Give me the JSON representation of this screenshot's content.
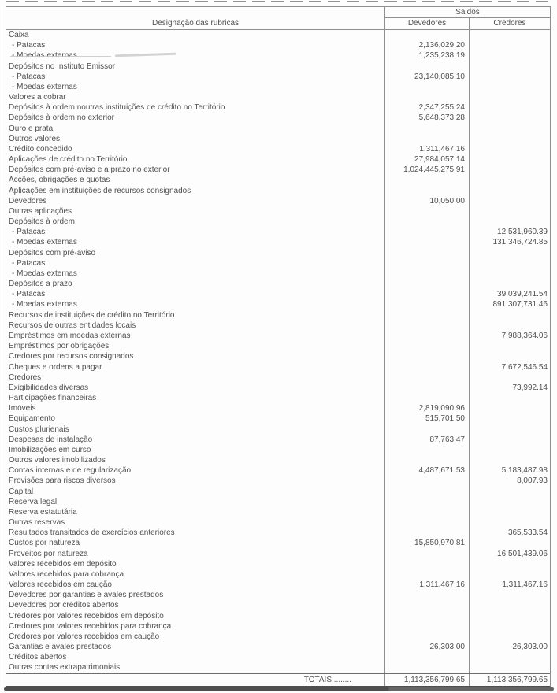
{
  "colors": {
    "ink": "#4f4f4f",
    "line": "#8f8f8f"
  },
  "table": {
    "header": {
      "designacao": "Designação das rubricas",
      "saldos": "Saldos",
      "devedores": "Devedores",
      "credores": "Credores"
    },
    "rows": [
      {
        "label": "Caixa",
        "dev": "",
        "cred": ""
      },
      {
        "label": "- Patacas",
        "sub": true,
        "dev": "2,136,029.20",
        "cred": ""
      },
      {
        "label": "- Moedas externas",
        "sub": true,
        "smudge": true,
        "dev": "1,235,238.19",
        "cred": ""
      },
      {
        "label": "Depósitos no Instituto Emissor",
        "dev": "",
        "cred": ""
      },
      {
        "label": "- Patacas",
        "sub": true,
        "dev": "23,140,085.10",
        "cred": ""
      },
      {
        "label": "- Moedas externas",
        "sub": true,
        "dev": "",
        "cred": ""
      },
      {
        "label": "Valores a cobrar",
        "dev": "",
        "cred": ""
      },
      {
        "label": "Depósitos à ordem noutras instituições de crédito no Território",
        "dev": "2,347,255.24",
        "cred": ""
      },
      {
        "label": "Depósitos à ordem no exterior",
        "dev": "5,648,373.28",
        "cred": ""
      },
      {
        "label": "Ouro e prata",
        "dev": "",
        "cred": ""
      },
      {
        "label": "Outros valores",
        "dev": "",
        "cred": ""
      },
      {
        "label": "Crédito concedido",
        "dev": "1,311,467.16",
        "cred": ""
      },
      {
        "label": "Aplicações de crédito no Território",
        "dev": "27,984,057.14",
        "cred": ""
      },
      {
        "label": "Depósitos com pré-aviso e a prazo no exterior",
        "dev": "1,024,445,275.91",
        "cred": ""
      },
      {
        "label": "Acções, obrigações e quotas",
        "dev": "",
        "cred": ""
      },
      {
        "label": "Aplicações em instituições de recursos consignados",
        "dev": "",
        "cred": ""
      },
      {
        "label": "Devedores",
        "dev": "10,050.00",
        "cred": ""
      },
      {
        "label": "Outras aplicações",
        "dev": "",
        "cred": ""
      },
      {
        "label": "Depósitos à ordem",
        "dev": "",
        "cred": ""
      },
      {
        "label": "- Patacas",
        "sub": true,
        "dev": "",
        "cred": "12,531,960.39"
      },
      {
        "label": "- Moedas externas",
        "sub": true,
        "dev": "",
        "cred": "131,346,724.85"
      },
      {
        "label": "Depósitos com pré-aviso",
        "dev": "",
        "cred": ""
      },
      {
        "label": "- Patacas",
        "sub": true,
        "dev": "",
        "cred": ""
      },
      {
        "label": "- Moedas externas",
        "sub": true,
        "dev": "",
        "cred": ""
      },
      {
        "label": "Depósitos a prazo",
        "dev": "",
        "cred": ""
      },
      {
        "label": "- Patacas",
        "sub": true,
        "dev": "",
        "cred": "39,039,241.54"
      },
      {
        "label": "- Moedas externas",
        "sub": true,
        "dev": "",
        "cred": "891,307,731.46"
      },
      {
        "label": "Recursos de instituições de crédito no Território",
        "dev": "",
        "cred": ""
      },
      {
        "label": "Recursos de outras entidades locais",
        "dev": "",
        "cred": ""
      },
      {
        "label": "Empréstimos em moedas externas",
        "dev": "",
        "cred": "7,988,364.06"
      },
      {
        "label": "Empréstimos por obrigações",
        "dev": "",
        "cred": ""
      },
      {
        "label": "Credores por recursos consignados",
        "dev": "",
        "cred": ""
      },
      {
        "label": "Cheques e ordens a pagar",
        "dev": "",
        "cred": "7,672,546.54"
      },
      {
        "label": "Credores",
        "dev": "",
        "cred": ""
      },
      {
        "label": "Exigibilidades diversas",
        "dev": "",
        "cred": "73,992.14"
      },
      {
        "label": "Participações financeiras",
        "dev": "",
        "cred": ""
      },
      {
        "label": "Imóveis",
        "dev": "2,819,090.96",
        "cred": ""
      },
      {
        "label": "Equipamento",
        "dev": "515,701.50",
        "cred": ""
      },
      {
        "label": "Custos plurienais",
        "dev": "",
        "cred": ""
      },
      {
        "label": "Despesas de instalação",
        "dev": "87,763.47",
        "cred": ""
      },
      {
        "label": "Imobilizações em curso",
        "dev": "",
        "cred": ""
      },
      {
        "label": "Outros valores imobilizados",
        "dev": "",
        "cred": ""
      },
      {
        "label": "Contas internas e de regularização",
        "dev": "4,487,671.53",
        "cred": "5,183,487.98"
      },
      {
        "label": "Provisões para riscos diversos",
        "dev": "",
        "cred": "8,007.93"
      },
      {
        "label": "Capital",
        "dev": "",
        "cred": ""
      },
      {
        "label": "Reserva legal",
        "dev": "",
        "cred": ""
      },
      {
        "label": "Reserva estatutária",
        "dev": "",
        "cred": ""
      },
      {
        "label": "Outras reservas",
        "dev": "",
        "cred": ""
      },
      {
        "label": "Resultados transitados de exercícios anteriores",
        "dev": "",
        "cred": "365,533.54"
      },
      {
        "label": "Custos por natureza",
        "dev": "15,850,970.81",
        "cred": ""
      },
      {
        "label": "Proveitos por natureza",
        "dev": "",
        "cred": "16,501,439.06"
      },
      {
        "label": "Valores recebidos em depósito",
        "dev": "",
        "cred": ""
      },
      {
        "label": "Valores recebidos para cobrança",
        "dev": "",
        "cred": ""
      },
      {
        "label": "Valores recebidos em caução",
        "dev": "1,311,467.16",
        "cred": "1,311,467.16"
      },
      {
        "label": "Devedores por garantias e avales prestados",
        "dev": "",
        "cred": ""
      },
      {
        "label": "Devedores por créditos abertos",
        "dev": "",
        "cred": ""
      },
      {
        "label": "Credores por valores recebidos em depósito",
        "dev": "",
        "cred": ""
      },
      {
        "label": "Credores por valores recebidos para cobrança",
        "dev": "",
        "cred": ""
      },
      {
        "label": "Credores por valores recebidos em caução",
        "dev": "",
        "cred": ""
      },
      {
        "label": "Garantias e avales prestados",
        "dev": "26,303.00",
        "cred": "26,303.00"
      },
      {
        "label": "Créditos abertos",
        "dev": "",
        "cred": ""
      },
      {
        "label": "Outras contas extrapatrimoniais",
        "dev": "",
        "cred": ""
      }
    ],
    "totals": {
      "label": "TOTAIS ........",
      "dev": "1,113,356,799.65",
      "cred": "1,113,356,799.65"
    }
  }
}
